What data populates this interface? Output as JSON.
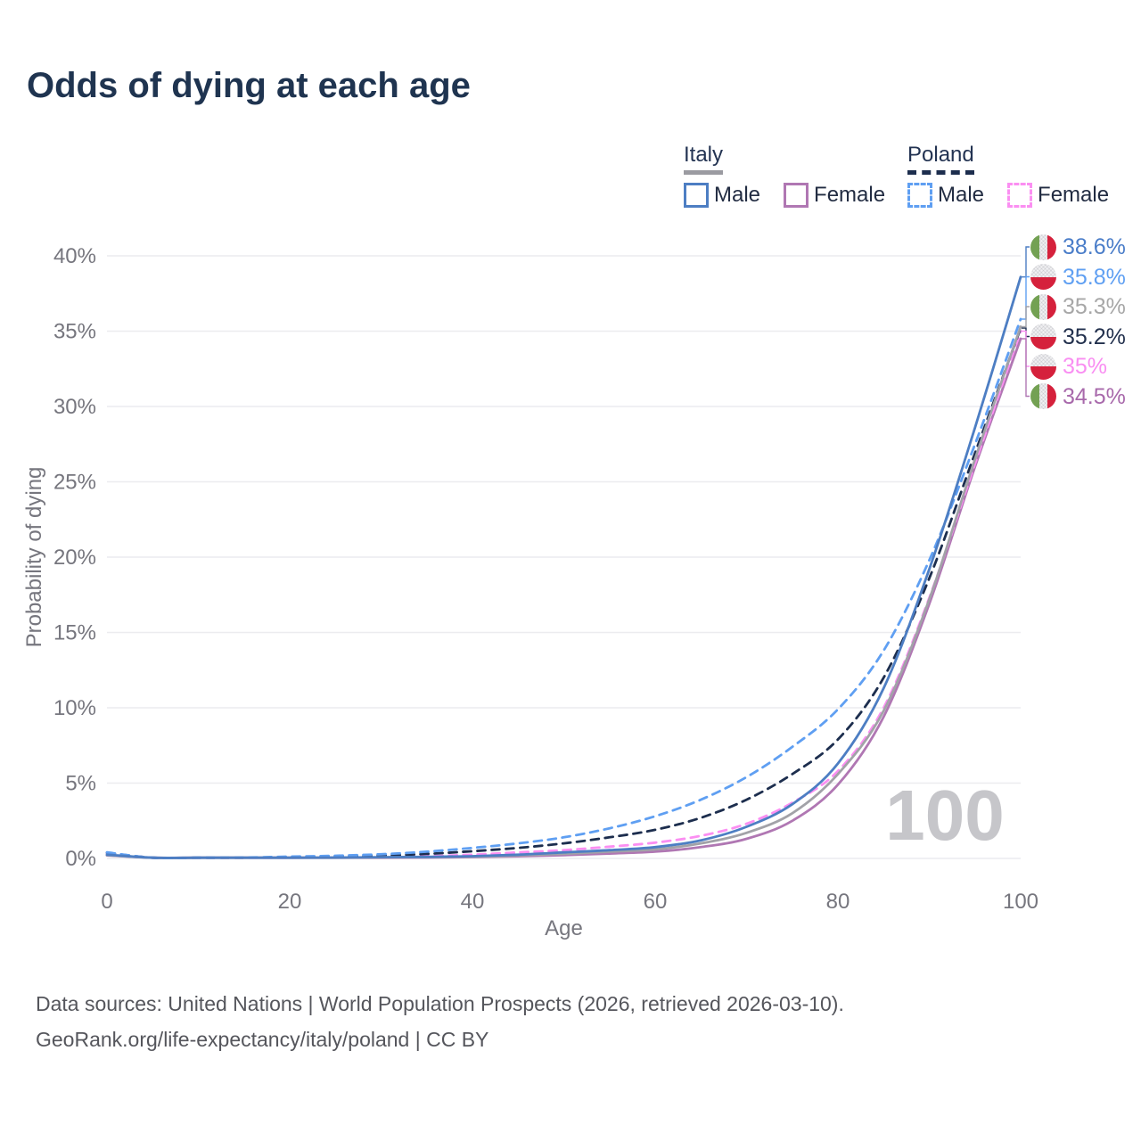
{
  "title": "Odds of dying at each age",
  "legend": {
    "groups": [
      {
        "label": "Italy",
        "underline_style": "solid",
        "underline_color": "#9b9ba1",
        "items": [
          {
            "label": "Male",
            "color": "#4d7ec3",
            "dashed": false
          },
          {
            "label": "Female",
            "color": "#b077b3",
            "dashed": false
          }
        ]
      },
      {
        "label": "Poland",
        "underline_style": "dashed",
        "underline_color": "#1d2e4e",
        "items": [
          {
            "label": "Male",
            "color": "#5f9ff2",
            "dashed": true
          },
          {
            "label": "Female",
            "color": "#fb8ff2",
            "dashed": true
          }
        ]
      }
    ]
  },
  "chart_data": {
    "type": "line",
    "title": "Odds of dying at each age",
    "xlabel": "Age",
    "ylabel": "Probability of dying",
    "xlim": [
      0,
      100
    ],
    "ylim": [
      0,
      40
    ],
    "x_ticks": [
      0,
      20,
      40,
      60,
      80,
      100
    ],
    "y_ticks": [
      0,
      5,
      10,
      15,
      20,
      25,
      30,
      35,
      40
    ],
    "y_tick_labels": [
      "0%",
      "5%",
      "10%",
      "15%",
      "20%",
      "25%",
      "30%",
      "35%",
      "40%"
    ],
    "grid": true,
    "legend_position": "top-right",
    "watermark": "100",
    "ages": [
      0,
      5,
      10,
      15,
      20,
      25,
      30,
      35,
      40,
      45,
      50,
      55,
      60,
      65,
      70,
      75,
      80,
      85,
      90,
      95,
      100
    ],
    "series": [
      {
        "name": "Italy Male",
        "country": "Italy",
        "sex": "Male",
        "flag": "italy",
        "color": "#4d7ec3",
        "dashed": false,
        "end_label": "38.6%",
        "label_color": "#4a7dc9",
        "values": [
          0.25,
          0.01,
          0.01,
          0.03,
          0.05,
          0.06,
          0.08,
          0.1,
          0.15,
          0.25,
          0.4,
          0.55,
          0.75,
          1.2,
          2.1,
          3.6,
          6.3,
          11.3,
          19.2,
          28.6,
          38.6
        ]
      },
      {
        "name": "Poland Male",
        "country": "Poland",
        "sex": "Male",
        "flag": "poland",
        "color": "#5f9ff2",
        "dashed": true,
        "end_label": "35.8%",
        "label_color": "#5f9ff2",
        "values": [
          0.4,
          0.02,
          0.03,
          0.06,
          0.12,
          0.18,
          0.28,
          0.45,
          0.7,
          1.0,
          1.4,
          2.0,
          2.8,
          3.9,
          5.4,
          7.4,
          9.9,
          13.8,
          19.8,
          27.5,
          35.8
        ]
      },
      {
        "name": "Italy",
        "country": "Italy",
        "sex": "Both",
        "flag": "italy",
        "color": "#a2a2a8",
        "dashed": false,
        "end_label": "35.3%",
        "label_color": "#a7a7a7",
        "values": [
          0.22,
          0.01,
          0.01,
          0.02,
          0.04,
          0.05,
          0.07,
          0.09,
          0.12,
          0.2,
          0.31,
          0.45,
          0.6,
          1.0,
          1.7,
          3.0,
          5.6,
          9.8,
          17.2,
          26.5,
          35.3
        ]
      },
      {
        "name": "Poland",
        "country": "Poland",
        "sex": "Both",
        "flag": "poland",
        "color": "#1d2e4e",
        "dashed": true,
        "end_label": "35.2%",
        "label_color": "#22304d",
        "values": [
          0.38,
          0.02,
          0.02,
          0.05,
          0.09,
          0.13,
          0.19,
          0.3,
          0.48,
          0.7,
          1.0,
          1.4,
          1.9,
          2.7,
          3.9,
          5.6,
          7.9,
          12.0,
          18.6,
          26.9,
          35.2
        ]
      },
      {
        "name": "Poland Female",
        "country": "Poland",
        "sex": "Female",
        "flag": "poland",
        "color": "#fb8ff2",
        "dashed": true,
        "end_label": "35%",
        "label_color": "#f98ef2",
        "values": [
          0.35,
          0.02,
          0.02,
          0.03,
          0.05,
          0.07,
          0.1,
          0.15,
          0.25,
          0.4,
          0.55,
          0.78,
          1.05,
          1.5,
          2.3,
          3.7,
          5.8,
          10.0,
          17.3,
          26.2,
          35.0
        ]
      },
      {
        "name": "Italy Female",
        "country": "Italy",
        "sex": "Female",
        "flag": "italy",
        "color": "#b077b3",
        "dashed": false,
        "end_label": "34.5%",
        "label_color": "#a869ab",
        "values": [
          0.2,
          0.01,
          0.01,
          0.02,
          0.03,
          0.03,
          0.04,
          0.06,
          0.09,
          0.14,
          0.22,
          0.32,
          0.45,
          0.75,
          1.3,
          2.5,
          4.9,
          9.4,
          16.9,
          26.0,
          34.5
        ]
      }
    ]
  },
  "footer": {
    "line1": "Data sources: United Nations | World Population Prospects (2026, retrieved 2026-03-10).",
    "line2": "GeoRank.org/life-expectancy/italy/poland | CC BY"
  }
}
